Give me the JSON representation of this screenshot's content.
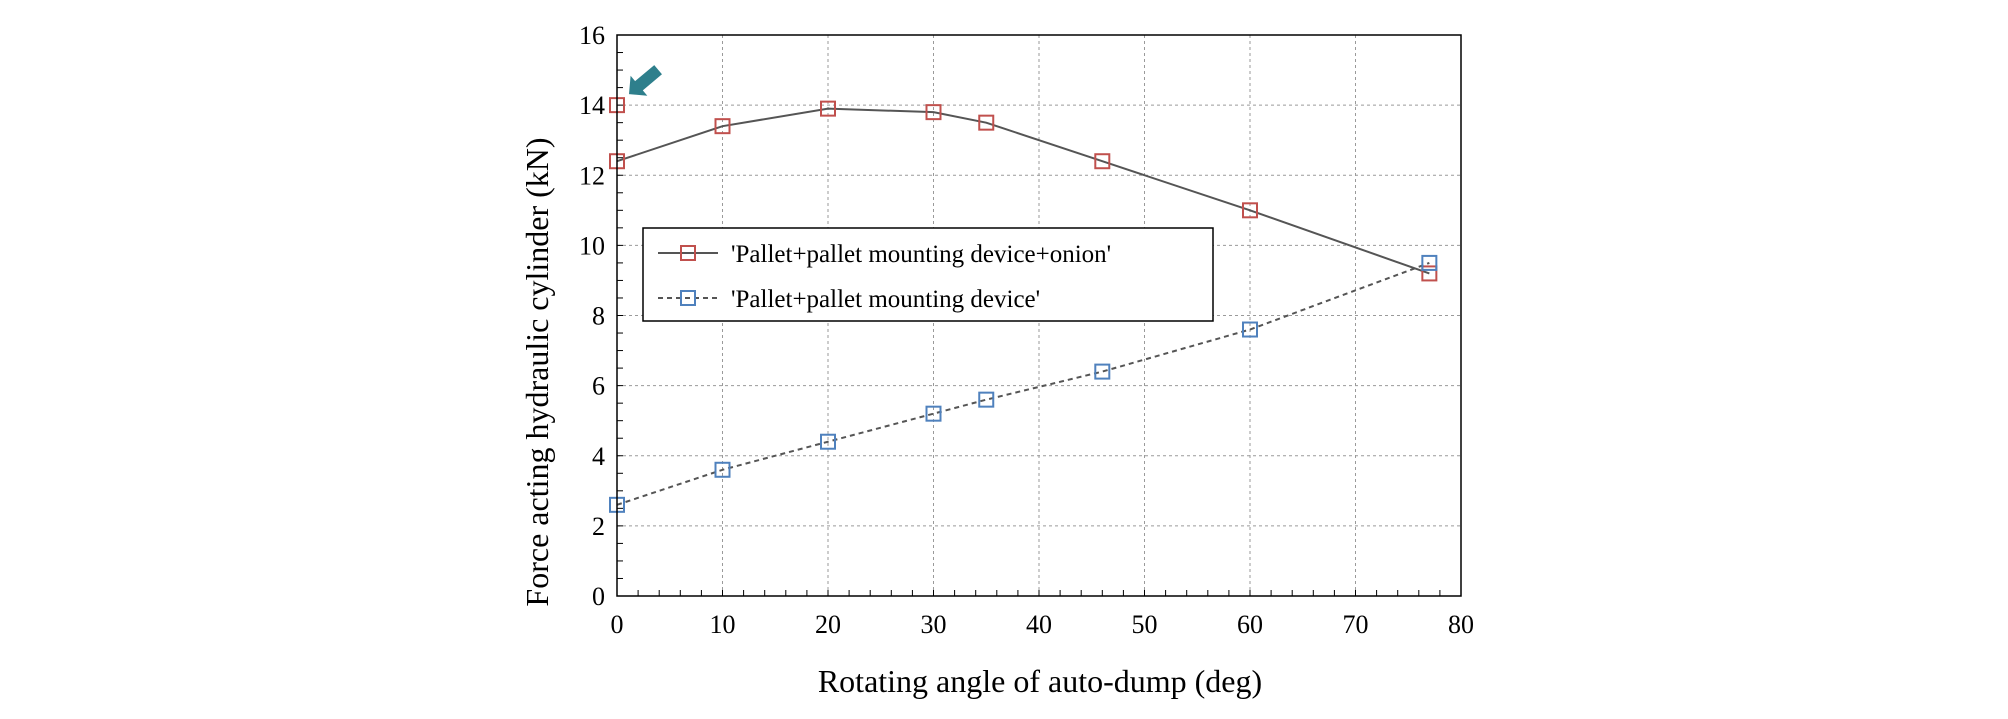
{
  "chart_data": {
    "type": "line",
    "xlabel": "Rotating angle of auto-dump (deg)",
    "ylabel": "Force acting hydraulic cylinder (kN)",
    "xlim": [
      0,
      80
    ],
    "ylim": [
      0,
      16
    ],
    "xticks": [
      0,
      10,
      20,
      30,
      40,
      50,
      60,
      70,
      80
    ],
    "yticks": [
      0,
      2,
      4,
      6,
      8,
      10,
      12,
      14,
      16
    ],
    "grid": true,
    "legend_position": "center-left",
    "series": [
      {
        "name": "'Pallet+pallet mounting device+onion'",
        "line_style": "solid",
        "line_color": "#555555",
        "marker": "square",
        "marker_color": "#c0504d",
        "x": [
          0,
          10,
          20,
          30,
          35,
          46,
          60,
          77
        ],
        "y": [
          12.4,
          13.4,
          13.9,
          13.8,
          13.5,
          12.4,
          11.0,
          9.2
        ]
      },
      {
        "name": "'Pallet+pallet mounting device'",
        "line_style": "dashed",
        "line_color": "#555555",
        "marker": "square",
        "marker_color": "#4f81bd",
        "x": [
          0,
          10,
          20,
          30,
          35,
          46,
          60,
          77
        ],
        "y": [
          2.6,
          3.6,
          4.4,
          5.2,
          5.6,
          6.4,
          7.6,
          9.5
        ]
      }
    ],
    "extra_points": [
      {
        "series": 0,
        "x": 0,
        "y": 14.0,
        "annotation": "arrow",
        "arrow_color": "#2e7f8c"
      }
    ]
  }
}
